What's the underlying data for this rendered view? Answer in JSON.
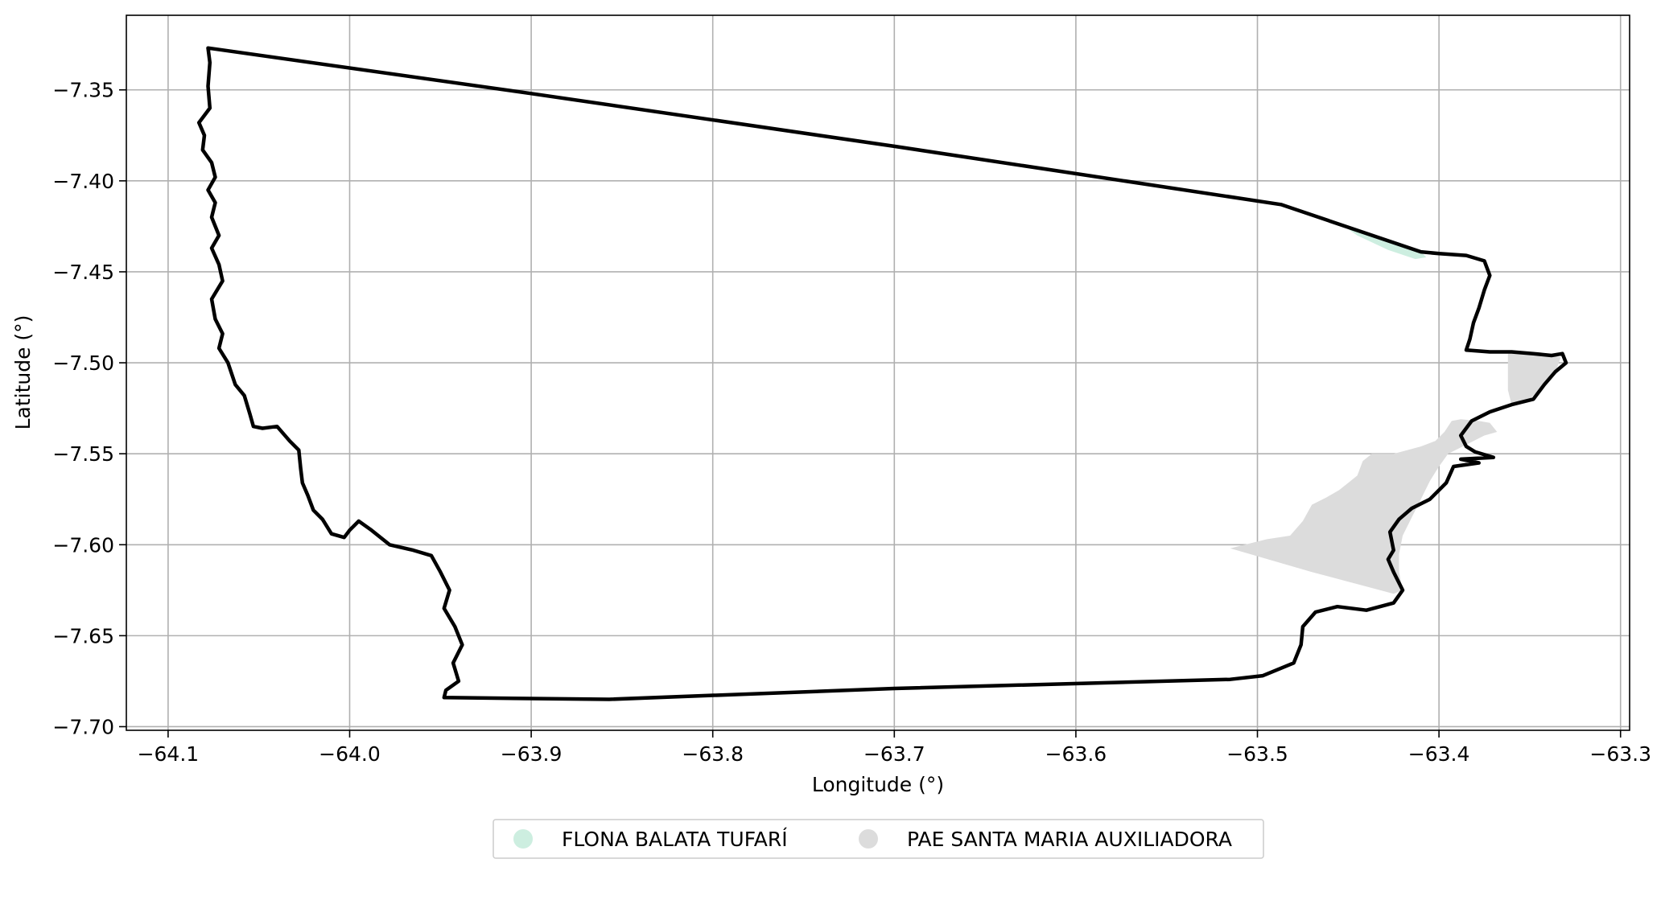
{
  "map": {
    "xlabel": "Longitude (°)",
    "ylabel": "Latitude (°)",
    "xlim": [
      -64.123,
      -63.295
    ],
    "ylim": [
      -7.702,
      -7.309
    ],
    "x_ticks": [
      {
        "value": -64.1,
        "label": "−64.1"
      },
      {
        "value": -64.0,
        "label": "−64.0"
      },
      {
        "value": -63.9,
        "label": "−63.9"
      },
      {
        "value": -63.8,
        "label": "−63.8"
      },
      {
        "value": -63.7,
        "label": "−63.7"
      },
      {
        "value": -63.6,
        "label": "−63.6"
      },
      {
        "value": -63.5,
        "label": "−63.5"
      },
      {
        "value": -63.4,
        "label": "−63.4"
      },
      {
        "value": -63.3,
        "label": "−63.3"
      }
    ],
    "y_ticks": [
      {
        "value": -7.35,
        "label": "−7.35"
      },
      {
        "value": -7.4,
        "label": "−7.40"
      },
      {
        "value": -7.45,
        "label": "−7.45"
      },
      {
        "value": -7.5,
        "label": "−7.50"
      },
      {
        "value": -7.55,
        "label": "−7.55"
      },
      {
        "value": -7.6,
        "label": "−7.60"
      },
      {
        "value": -7.65,
        "label": "−7.65"
      },
      {
        "value": -7.7,
        "label": "−7.70"
      }
    ],
    "grid": true,
    "legend_placement": "bottom-center",
    "colors": {
      "boundary": "#000000",
      "grid": "#b0b0b0",
      "flona": "#cdeee0",
      "pae": "#dcdcdc"
    },
    "legend": [
      {
        "label": "FLONA BALATA TUFARÍ",
        "color": "#cdeee0"
      },
      {
        "label": "PAE SANTA MARIA AUXILIADORA",
        "color": "#dcdcdc"
      }
    ],
    "layers": {
      "pae": {
        "name": "PAE SANTA MARIA AUXILIADORA",
        "polygon": [
          [
            -63.515,
            -7.602
          ],
          [
            -63.495,
            -7.597
          ],
          [
            -63.482,
            -7.595
          ],
          [
            -63.475,
            -7.587
          ],
          [
            -63.47,
            -7.578
          ],
          [
            -63.462,
            -7.574
          ],
          [
            -63.455,
            -7.57
          ],
          [
            -63.45,
            -7.566
          ],
          [
            -63.445,
            -7.562
          ],
          [
            -63.442,
            -7.554
          ],
          [
            -63.437,
            -7.55
          ],
          [
            -63.425,
            -7.55
          ],
          [
            -63.41,
            -7.546
          ],
          [
            -63.402,
            -7.543
          ],
          [
            -63.397,
            -7.538
          ],
          [
            -63.393,
            -7.532
          ],
          [
            -63.388,
            -7.531
          ],
          [
            -63.378,
            -7.532
          ],
          [
            -63.372,
            -7.533
          ],
          [
            -63.368,
            -7.538
          ],
          [
            -63.375,
            -7.54
          ],
          [
            -63.385,
            -7.545
          ],
          [
            -63.395,
            -7.55
          ],
          [
            -63.4,
            -7.557
          ],
          [
            -63.405,
            -7.565
          ],
          [
            -63.41,
            -7.575
          ],
          [
            -63.415,
            -7.585
          ],
          [
            -63.42,
            -7.595
          ],
          [
            -63.422,
            -7.605
          ],
          [
            -63.422,
            -7.615
          ],
          [
            -63.42,
            -7.625
          ],
          [
            -63.425,
            -7.627
          ],
          [
            -63.47,
            -7.615
          ],
          [
            -63.515,
            -7.602
          ]
        ],
        "polygon2": [
          [
            -63.362,
            -7.495
          ],
          [
            -63.345,
            -7.494
          ],
          [
            -63.333,
            -7.497
          ],
          [
            -63.335,
            -7.503
          ],
          [
            -63.342,
            -7.512
          ],
          [
            -63.35,
            -7.52
          ],
          [
            -63.36,
            -7.523
          ],
          [
            -63.362,
            -7.515
          ],
          [
            -63.362,
            -7.495
          ]
        ]
      },
      "flona": {
        "name": "FLONA BALATA TUFARÍ",
        "polygon": [
          [
            -63.455,
            -7.423
          ],
          [
            -63.44,
            -7.429
          ],
          [
            -63.425,
            -7.435
          ],
          [
            -63.41,
            -7.439
          ],
          [
            -63.407,
            -7.442
          ],
          [
            -63.413,
            -7.443
          ],
          [
            -63.428,
            -7.438
          ],
          [
            -63.445,
            -7.43
          ],
          [
            -63.455,
            -7.423
          ]
        ]
      },
      "boundary": {
        "name": "boundary",
        "line": [
          [
            -64.078,
            -7.327
          ],
          [
            -63.9,
            -7.352
          ],
          [
            -63.7,
            -7.381
          ],
          [
            -63.487,
            -7.413
          ],
          [
            -63.41,
            -7.439
          ],
          [
            -63.4,
            -7.44
          ],
          [
            -63.385,
            -7.441
          ],
          [
            -63.375,
            -7.444
          ],
          [
            -63.372,
            -7.452
          ],
          [
            -63.375,
            -7.46
          ],
          [
            -63.378,
            -7.47
          ],
          [
            -63.381,
            -7.478
          ],
          [
            -63.383,
            -7.487
          ],
          [
            -63.385,
            -7.493
          ],
          [
            -63.372,
            -7.494
          ],
          [
            -63.36,
            -7.494
          ],
          [
            -63.348,
            -7.495
          ],
          [
            -63.338,
            -7.496
          ],
          [
            -63.332,
            -7.495
          ],
          [
            -63.33,
            -7.5
          ],
          [
            -63.336,
            -7.505
          ],
          [
            -63.342,
            -7.512
          ],
          [
            -63.348,
            -7.52
          ],
          [
            -63.36,
            -7.523
          ],
          [
            -63.372,
            -7.527
          ],
          [
            -63.382,
            -7.532
          ],
          [
            -63.388,
            -7.54
          ],
          [
            -63.385,
            -7.546
          ],
          [
            -63.38,
            -7.549
          ],
          [
            -63.37,
            -7.552
          ],
          [
            -63.388,
            -7.553
          ],
          [
            -63.378,
            -7.555
          ],
          [
            -63.392,
            -7.557
          ],
          [
            -63.396,
            -7.566
          ],
          [
            -63.405,
            -7.575
          ],
          [
            -63.415,
            -7.58
          ],
          [
            -63.422,
            -7.586
          ],
          [
            -63.427,
            -7.593
          ],
          [
            -63.425,
            -7.603
          ],
          [
            -63.428,
            -7.608
          ],
          [
            -63.425,
            -7.615
          ],
          [
            -63.42,
            -7.625
          ],
          [
            -63.425,
            -7.632
          ],
          [
            -63.44,
            -7.636
          ],
          [
            -63.456,
            -7.634
          ],
          [
            -63.468,
            -7.637
          ],
          [
            -63.475,
            -7.645
          ],
          [
            -63.476,
            -7.655
          ],
          [
            -63.48,
            -7.665
          ],
          [
            -63.497,
            -7.672
          ],
          [
            -63.515,
            -7.674
          ],
          [
            -63.7,
            -7.679
          ],
          [
            -63.857,
            -7.685
          ],
          [
            -63.948,
            -7.684
          ],
          [
            -63.947,
            -7.68
          ],
          [
            -63.94,
            -7.675
          ],
          [
            -63.943,
            -7.665
          ],
          [
            -63.938,
            -7.655
          ],
          [
            -63.942,
            -7.645
          ],
          [
            -63.948,
            -7.635
          ],
          [
            -63.945,
            -7.625
          ],
          [
            -63.95,
            -7.615
          ],
          [
            -63.955,
            -7.606
          ],
          [
            -63.965,
            -7.603
          ],
          [
            -63.978,
            -7.6
          ],
          [
            -63.988,
            -7.592
          ],
          [
            -63.995,
            -7.587
          ],
          [
            -64.0,
            -7.592
          ],
          [
            -64.003,
            -7.596
          ],
          [
            -64.01,
            -7.594
          ],
          [
            -64.015,
            -7.586
          ],
          [
            -64.02,
            -7.581
          ],
          [
            -64.023,
            -7.573
          ],
          [
            -64.026,
            -7.566
          ],
          [
            -64.027,
            -7.558
          ],
          [
            -64.028,
            -7.548
          ],
          [
            -64.033,
            -7.543
          ],
          [
            -64.04,
            -7.535
          ],
          [
            -64.048,
            -7.536
          ],
          [
            -64.053,
            -7.535
          ],
          [
            -64.055,
            -7.528
          ],
          [
            -64.058,
            -7.518
          ],
          [
            -64.063,
            -7.512
          ],
          [
            -64.067,
            -7.5
          ],
          [
            -64.072,
            -7.492
          ],
          [
            -64.07,
            -7.484
          ],
          [
            -64.074,
            -7.476
          ],
          [
            -64.076,
            -7.465
          ],
          [
            -64.07,
            -7.455
          ],
          [
            -64.072,
            -7.446
          ],
          [
            -64.076,
            -7.437
          ],
          [
            -64.072,
            -7.43
          ],
          [
            -64.076,
            -7.42
          ],
          [
            -64.074,
            -7.412
          ],
          [
            -64.078,
            -7.405
          ],
          [
            -64.074,
            -7.398
          ],
          [
            -64.076,
            -7.39
          ],
          [
            -64.081,
            -7.383
          ],
          [
            -64.08,
            -7.375
          ],
          [
            -64.083,
            -7.368
          ],
          [
            -64.077,
            -7.36
          ],
          [
            -64.078,
            -7.348
          ],
          [
            -64.077,
            -7.335
          ],
          [
            -64.078,
            -7.327
          ]
        ]
      }
    }
  }
}
